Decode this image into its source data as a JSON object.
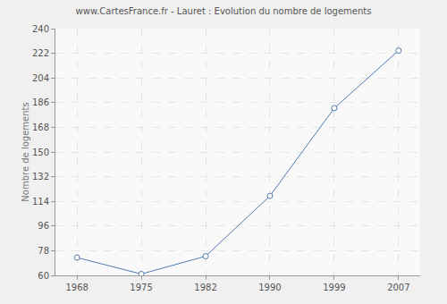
{
  "chart_data": {
    "type": "line",
    "title": "www.CartesFrance.fr - Lauret : Evolution du nombre de logements",
    "y_label": "Nombre de logements",
    "categories": [
      "1968",
      "1975",
      "1982",
      "1990",
      "1999",
      "2007"
    ],
    "values": [
      73,
      61,
      74,
      118,
      182,
      224
    ],
    "color": "#4f7cac",
    "marker": "circle",
    "ylim": [
      60,
      240
    ],
    "yticks": [
      60,
      78,
      96,
      114,
      132,
      150,
      168,
      186,
      204,
      222,
      240
    ],
    "grid": true
  }
}
